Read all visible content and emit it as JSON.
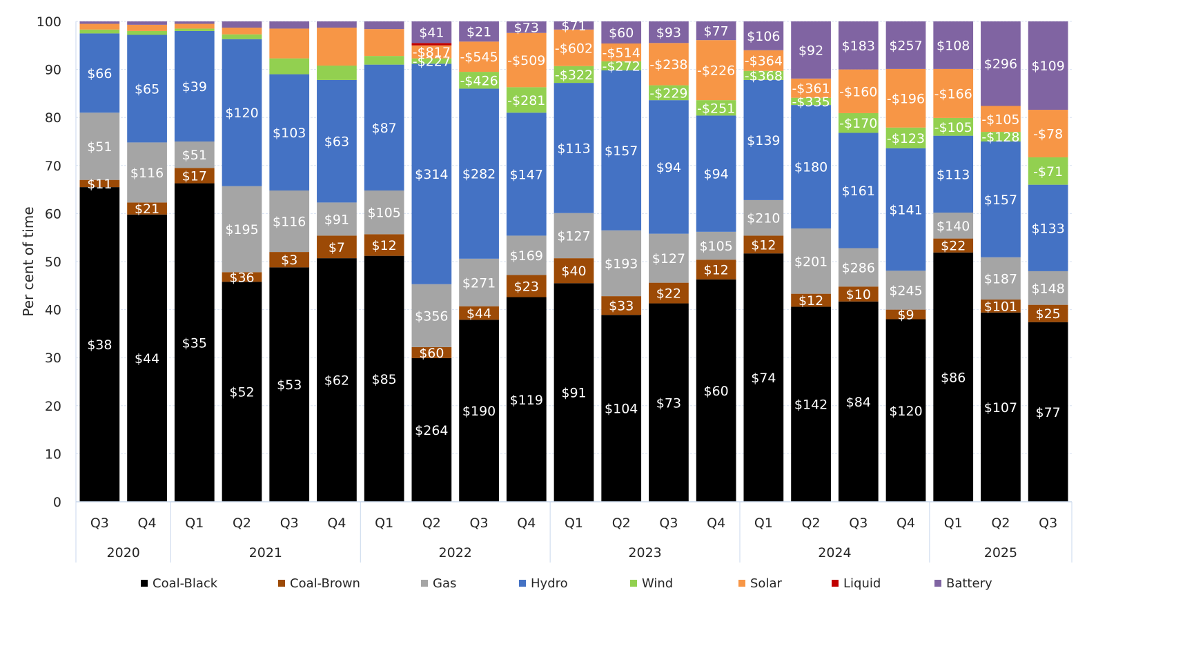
{
  "chart_data": {
    "type": "bar",
    "stacked": true,
    "title": "",
    "xlabel": "",
    "ylabel": "Per cent of time",
    "ylim": [
      0,
      100
    ],
    "yticks": [
      0,
      10,
      20,
      30,
      40,
      50,
      60,
      70,
      80,
      90,
      100
    ],
    "grid": true,
    "legend_position": "bottom",
    "groups": [
      {
        "label": "2020",
        "categories": [
          "Q3",
          "Q4"
        ]
      },
      {
        "label": "2021",
        "categories": [
          "Q1",
          "Q2",
          "Q3",
          "Q4"
        ]
      },
      {
        "label": "2022",
        "categories": [
          "Q1",
          "Q2",
          "Q3",
          "Q4"
        ]
      },
      {
        "label": "2023",
        "categories": [
          "Q1",
          "Q2",
          "Q3",
          "Q4"
        ]
      },
      {
        "label": "2024",
        "categories": [
          "Q1",
          "Q2",
          "Q3",
          "Q4"
        ]
      },
      {
        "label": "2025",
        "categories": [
          "Q1",
          "Q2",
          "Q3"
        ]
      }
    ],
    "categories": [
      "2020 Q3",
      "2020 Q4",
      "2021 Q1",
      "2021 Q2",
      "2021 Q3",
      "2021 Q4",
      "2022 Q1",
      "2022 Q2",
      "2022 Q3",
      "2022 Q4",
      "2023 Q1",
      "2023 Q2",
      "2023 Q3",
      "2023 Q4",
      "2024 Q1",
      "2024 Q2",
      "2024 Q3",
      "2024 Q4",
      "2025 Q1",
      "2025 Q2",
      "2025 Q3"
    ],
    "series": [
      {
        "name": "Coal-Black",
        "color": "#000000",
        "values": [
          65.5,
          59.8,
          66.3,
          45.8,
          48.8,
          50.7,
          51.2,
          29.9,
          37.9,
          42.6,
          45.5,
          38.9,
          41.3,
          46.3,
          51.7,
          40.6,
          41.7,
          38.0,
          51.9,
          39.4,
          37.4
        ],
        "labels": [
          "$38",
          "$44",
          "$35",
          "$52",
          "$53",
          "$62",
          "$85",
          "$264",
          "$190",
          "$119",
          "$91",
          "$104",
          "$73",
          "$60",
          "$74",
          "$142",
          "$84",
          "$120",
          "$86",
          "$107",
          "$77"
        ]
      },
      {
        "name": "Coal-Brown",
        "color": "#9C4A06",
        "values": [
          1.5,
          2.5,
          3.2,
          2.0,
          3.2,
          4.7,
          4.5,
          2.3,
          2.8,
          4.6,
          5.2,
          3.9,
          4.3,
          4.1,
          3.7,
          2.7,
          3.1,
          2.0,
          2.9,
          2.7,
          3.6
        ],
        "labels": [
          "$11",
          "$21",
          "$17",
          "$36",
          "$3",
          "$7",
          "$12",
          "$60",
          "$44",
          "$23",
          "$40",
          "$33",
          "$22",
          "$12",
          "$12",
          "$12",
          "$10",
          "$9",
          "$22",
          "$101",
          "$25"
        ]
      },
      {
        "name": "Gas",
        "color": "#A5A5A5",
        "values": [
          14.0,
          12.5,
          5.5,
          17.9,
          12.8,
          6.9,
          9.1,
          13.1,
          9.9,
          8.2,
          9.4,
          13.7,
          10.2,
          5.8,
          7.4,
          13.6,
          8.0,
          8.1,
          5.4,
          8.8,
          7.0
        ],
        "labels": [
          "$51",
          "$116",
          "$51",
          "$195",
          "$116",
          "$91",
          "$105",
          "$356",
          "$271",
          "$169",
          "$127",
          "$193",
          "$127",
          "$105",
          "$210",
          "$201",
          "$286",
          "$245",
          "$140",
          "$187",
          "$148"
        ]
      },
      {
        "name": "Hydro",
        "color": "#4472C4",
        "values": [
          16.5,
          22.4,
          23.0,
          30.6,
          24.2,
          25.5,
          26.2,
          45.9,
          35.4,
          25.6,
          27.1,
          33.3,
          27.8,
          24.2,
          25.0,
          25.7,
          24.0,
          25.5,
          16.0,
          24.1,
          18.0
        ],
        "labels": [
          "$66",
          "$65",
          "$39",
          "$120",
          "$103",
          "$63",
          "$87",
          "$314",
          "$282",
          "$147",
          "$113",
          "$157",
          "$94",
          "$94",
          "$139",
          "$180",
          "$161",
          "$141",
          "$113",
          "$157",
          "$133"
        ]
      },
      {
        "name": "Wind",
        "color": "#92D050",
        "values": [
          0.8,
          0.8,
          0.5,
          1.0,
          3.3,
          3.0,
          1.8,
          1.1,
          3.5,
          5.3,
          3.5,
          1.9,
          3.1,
          3.2,
          1.9,
          1.5,
          4.1,
          4.3,
          3.7,
          2.0,
          5.7
        ],
        "labels": [
          "",
          "",
          "",
          "",
          "",
          "",
          "",
          "-$227",
          "-$426",
          "-$281",
          "-$322",
          "-$272",
          "-$229",
          "-$251",
          "-$368",
          "-$335",
          "-$170",
          "-$123",
          "-$105",
          "-$128",
          "-$71"
        ]
      },
      {
        "name": "Solar",
        "color": "#F79646",
        "values": [
          1.2,
          1.3,
          1.0,
          1.4,
          6.2,
          7.9,
          5.6,
          2.7,
          6.3,
          11.3,
          7.6,
          3.7,
          8.8,
          12.5,
          4.3,
          4.0,
          9.1,
          12.2,
          10.2,
          5.4,
          9.9
        ],
        "labels": [
          "",
          "",
          "",
          "",
          "",
          "",
          "",
          "-$817",
          "-$545",
          "-$509",
          "-$602",
          "-$514",
          "-$238",
          "-$226",
          "-$364",
          "-$361",
          "-$160",
          "-$196",
          "-$166",
          "-$105",
          "-$78"
        ]
      },
      {
        "name": "Liquid",
        "color": "#C00000",
        "values": [
          0,
          0,
          0,
          0,
          0,
          0,
          0,
          0.5,
          0,
          0,
          0,
          0,
          0,
          0,
          0,
          0,
          0,
          0,
          0,
          0,
          0
        ],
        "labels": [
          "",
          "",
          "",
          "",
          "",
          "",
          "",
          "",
          "",
          "",
          "",
          "",
          "",
          "",
          "",
          "",
          "",
          "",
          "",
          "",
          ""
        ]
      },
      {
        "name": "Battery",
        "color": "#8064A2",
        "values": [
          0.5,
          0.7,
          0.5,
          1.3,
          1.5,
          1.3,
          1.6,
          4.5,
          4.2,
          2.4,
          1.7,
          4.6,
          4.5,
          3.9,
          6.0,
          11.9,
          10.0,
          9.9,
          9.9,
          17.6,
          18.4
        ],
        "labels": [
          "",
          "",
          "",
          "",
          "",
          "",
          "",
          "$41",
          "$21",
          "$73",
          "$71",
          "$60",
          "$93",
          "$77",
          "$106",
          "$92",
          "$183",
          "$257",
          "$108",
          "$296",
          "$109"
        ]
      }
    ]
  }
}
